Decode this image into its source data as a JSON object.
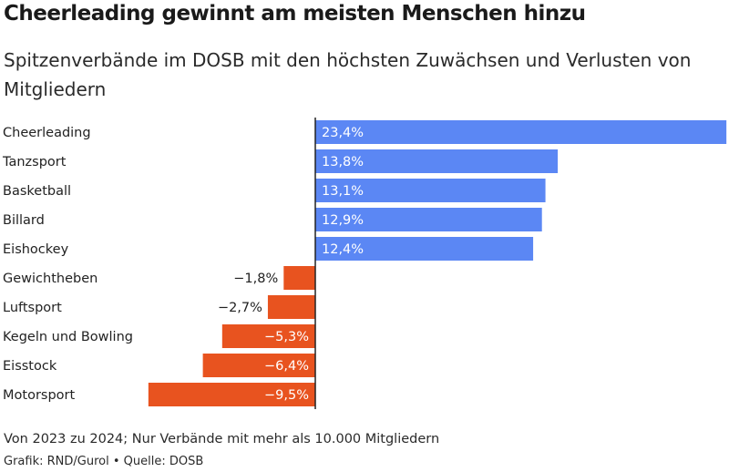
{
  "title": "Cheerleading gewinnt am meisten Menschen hinzu",
  "subtitle": "Spitzenverbände im DOSB mit den höchsten Zuwächsen und Verlusten von Mitgliedern",
  "note": "Von 2023 zu 2024; Nur Verbände mit mehr als 10.000 Mitgliedern",
  "credit": "Grafik: RND/Gurol • Quelle: DOSB",
  "colors": {
    "positive": "#5b87f4",
    "negative": "#e8531f",
    "axis": "#222222"
  },
  "chart_data": {
    "type": "bar",
    "orientation": "horizontal",
    "categories": [
      "Cheerleading",
      "Tanzsport",
      "Basketball",
      "Billard",
      "Eishockey",
      "Gewichtheben",
      "Luftsport",
      "Kegeln und Bowling",
      "Eisstock",
      "Motorsport"
    ],
    "values": [
      23.4,
      13.8,
      13.1,
      12.9,
      12.4,
      -1.8,
      -2.7,
      -5.3,
      -6.4,
      -9.5
    ],
    "value_labels": [
      "23,4%",
      "13,8%",
      "13,1%",
      "12,9%",
      "12,4%",
      "−1,8%",
      "−2,7%",
      "−5,3%",
      "−6,4%",
      "−9,5%"
    ],
    "xlim": [
      -9.5,
      23.4
    ],
    "grid": false
  }
}
